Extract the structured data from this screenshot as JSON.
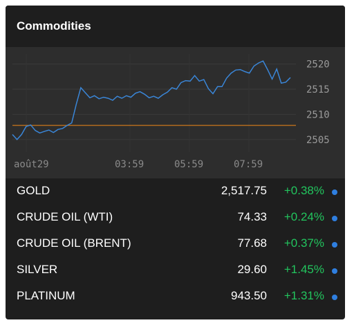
{
  "widget": {
    "title": "Commodities"
  },
  "colors": {
    "background": "#1e1e1e",
    "chart_background": "#2d2d2d",
    "line": "#3a86d8",
    "reference_line": "#b36b1e",
    "positive": "#22c55e",
    "status_dot": "#2f7fe0"
  },
  "chart_data": {
    "type": "line",
    "x_tick_labels": [
      "août29",
      "03:59",
      "05:59",
      "07:59"
    ],
    "y_tick_labels": [
      "2520",
      "2515",
      "2510",
      "2505"
    ],
    "ylim": [
      2502.5,
      2522
    ],
    "y_ticks": [
      2520,
      2515,
      2510,
      2505
    ],
    "reference_value": 2507.8,
    "grid": true,
    "series": [
      {
        "values": [
          2506,
          2505,
          2506,
          2507.6,
          2507.9,
          2506.8,
          2506.3,
          2506.6,
          2506.9,
          2506.4,
          2507,
          2507.2,
          2507.8,
          2508.3,
          2512,
          2515.3,
          2514.3,
          2513.3,
          2513.7,
          2513.1,
          2513.4,
          2513.2,
          2512.8,
          2513.6,
          2513.2,
          2513.7,
          2513.4,
          2514.2,
          2514.5,
          2514,
          2513.3,
          2513.6,
          2513.2,
          2513.9,
          2514.4,
          2515.3,
          2515,
          2516.3,
          2516.7,
          2516.6,
          2517.7,
          2516.6,
          2516.9,
          2515.1,
          2514.1,
          2515.5,
          2515.5,
          2517.2,
          2518.2,
          2518.8,
          2518.9,
          2518.5,
          2518.2,
          2519.6,
          2520.2,
          2520.6,
          2518.9,
          2517,
          2519,
          2516.2,
          2516.4,
          2517.3
        ]
      }
    ]
  },
  "rows": [
    {
      "name": "GOLD",
      "price": "2,517.75",
      "change": "+0.38%"
    },
    {
      "name": "CRUDE OIL (WTI)",
      "price": "74.33",
      "change": "+0.24%"
    },
    {
      "name": "CRUDE OIL (BRENT)",
      "price": "77.68",
      "change": "+0.37%"
    },
    {
      "name": "SILVER",
      "price": "29.60",
      "change": "+1.45%"
    },
    {
      "name": "PLATINUM",
      "price": "943.50",
      "change": "+1.31%"
    }
  ]
}
